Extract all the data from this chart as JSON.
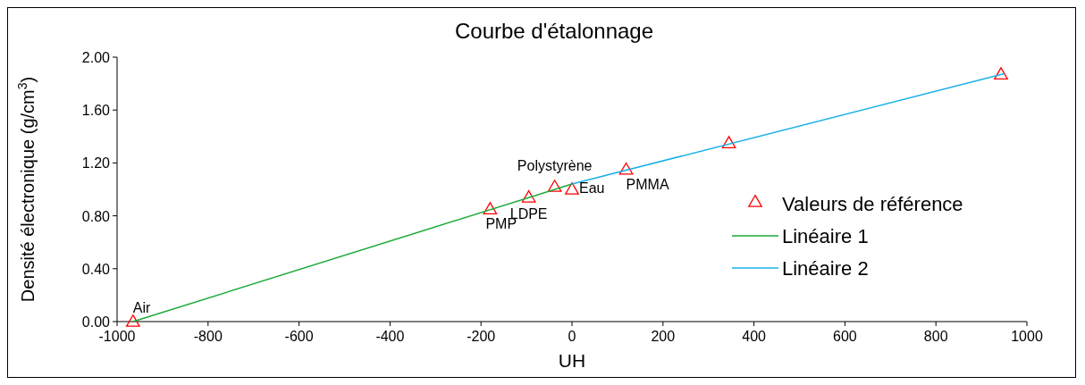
{
  "chart_data": {
    "type": "scatter",
    "title": "Courbe d'étalonnage",
    "xlabel": "UH",
    "ylabel": "Densité électronique (g/cm$^{3}$)",
    "xlim": [
      -1000,
      1000
    ],
    "xticks": [
      -1000,
      -800,
      -600,
      -400,
      -200,
      0,
      200,
      400,
      600,
      800,
      1000
    ],
    "ylim": [
      0,
      2
    ],
    "yticks": [
      {
        "value": 0,
        "label": "0.00"
      },
      {
        "value": 0.4,
        "label": "0.40"
      },
      {
        "value": 0.8,
        "label": "0.80"
      },
      {
        "value": 1.2,
        "label": "1.20"
      },
      {
        "value": 1.6,
        "label": "1.60"
      },
      {
        "value": 2,
        "label": "2.00"
      }
    ],
    "grid": false,
    "legend": "right",
    "series": [
      {
        "name": "Valeurs de référence",
        "marker": "triangle",
        "color": "#ff0000",
        "x": [
          -965,
          -180,
          -95,
          -38,
          0,
          119,
          345,
          943
        ],
        "values": [
          0,
          0.85,
          0.94,
          1.02,
          1.0,
          1.15,
          1.35,
          1.87
        ]
      },
      {
        "name": "Linéaire 1",
        "type": "line",
        "marker": "none",
        "color": "#1aaa3a",
        "x": [
          -965,
          0
        ],
        "values": [
          0,
          1.04
        ]
      },
      {
        "name": "Linéaire 2",
        "type": "line",
        "marker": "none",
        "color": "#1ab0e8",
        "x": [
          0,
          950
        ],
        "values": [
          1.04,
          1.875
        ]
      }
    ],
    "annotations": [
      {
        "text": "Air",
        "x": -965,
        "y": 0
      },
      {
        "text": "PMP",
        "x": -180,
        "y": 0.85
      },
      {
        "text": "LDPE",
        "x": -95,
        "y": 0.94
      },
      {
        "text": "Polystyrène",
        "x": -38,
        "y": 1.02
      },
      {
        "text": "Eau",
        "x": 0,
        "y": 1.0
      },
      {
        "text": "PMMA",
        "x": 119,
        "y": 1.15
      }
    ]
  }
}
